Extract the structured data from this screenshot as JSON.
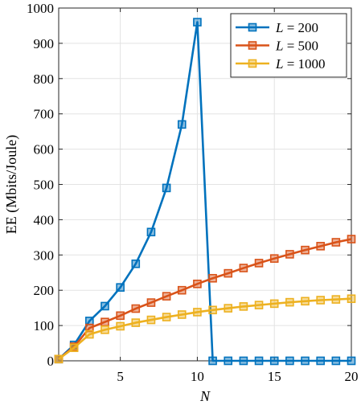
{
  "chart_data": {
    "type": "line",
    "xlabel": "N",
    "ylabel": "EE (Mbits/Joule)",
    "xlim": [
      1,
      20
    ],
    "ylim": [
      0,
      1000
    ],
    "xticks": [
      5,
      10,
      15,
      20
    ],
    "yticks": [
      0,
      100,
      200,
      300,
      400,
      500,
      600,
      700,
      800,
      900,
      1000
    ],
    "grid": true,
    "legend_position": "top-right",
    "x": [
      1,
      2,
      3,
      4,
      5,
      6,
      7,
      8,
      9,
      10,
      11,
      12,
      13,
      14,
      15,
      16,
      17,
      18,
      19,
      20
    ],
    "series": [
      {
        "name": "L = 200",
        "legend_var": "L",
        "legend_rest": " = 200",
        "color": "#0072BD",
        "values": [
          5,
          45,
          113,
          155,
          208,
          275,
          365,
          490,
          670,
          960,
          0,
          0,
          0,
          0,
          0,
          0,
          0,
          0,
          0,
          0
        ]
      },
      {
        "name": "L = 500",
        "legend_var": "L",
        "legend_rest": " = 500",
        "color": "#D95319",
        "values": [
          5,
          40,
          93,
          110,
          128,
          148,
          165,
          183,
          200,
          218,
          234,
          248,
          263,
          277,
          290,
          302,
          314,
          325,
          336,
          345
        ]
      },
      {
        "name": "L = 1000",
        "legend_var": "L",
        "legend_rest": " = 1000",
        "color": "#EDB120",
        "values": [
          5,
          37,
          75,
          88,
          98,
          108,
          116,
          124,
          131,
          138,
          144,
          149,
          154,
          158,
          162,
          166,
          169,
          172,
          174,
          176
        ]
      }
    ]
  }
}
